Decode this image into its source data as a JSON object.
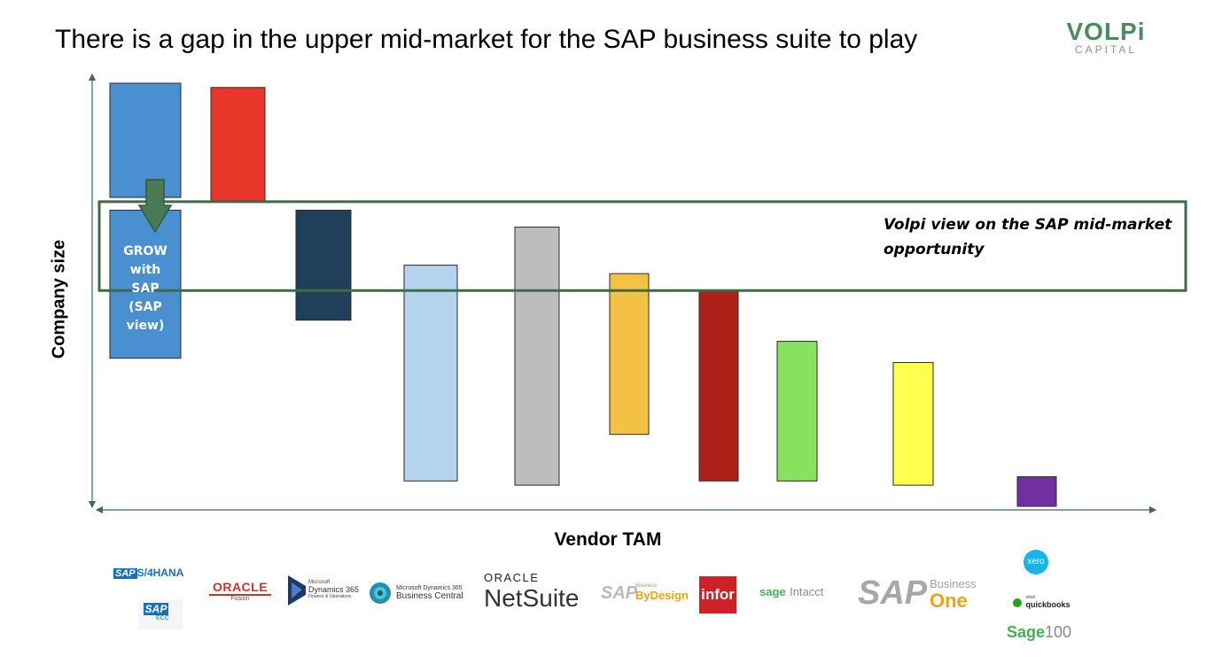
{
  "header": {
    "title": "There is a gap in the upper mid-market for the SAP business suite to play",
    "brand_name": "VOLPi",
    "brand_sub": "CAPITAL"
  },
  "chart_data": {
    "type": "bar",
    "subtype": "floating-range",
    "xlabel": "Vendor TAM",
    "ylabel": "Company size",
    "ylim": [
      0,
      100
    ],
    "grid": false,
    "legend": "none",
    "bars": [
      {
        "vendor": "SAP S/4HANA",
        "range": [
          73,
          100
        ],
        "color": "#4a8fcf"
      },
      {
        "vendor": "SAP ECC",
        "range": [
          35,
          70
        ],
        "color": "#4a8fcf",
        "label": "GROW with SAP (SAP view)"
      },
      {
        "vendor": "Oracle Fusion",
        "range": [
          72,
          99
        ],
        "color": "#e8372a"
      },
      {
        "vendor": "Microsoft Dynamics 365 Finance & Operations",
        "range": [
          44,
          70
        ],
        "color": "#1f3f5b"
      },
      {
        "vendor": "Microsoft Dynamics 365 Business Central",
        "range": [
          6,
          57
        ],
        "color": "#b4d4ee"
      },
      {
        "vendor": "Oracle NetSuite",
        "range": [
          5,
          66
        ],
        "color": "#bdbdbd"
      },
      {
        "vendor": "SAP Business ByDesign",
        "range": [
          17,
          55
        ],
        "color": "#f3c144"
      },
      {
        "vendor": "infor",
        "range": [
          6,
          51
        ],
        "color": "#ad2119"
      },
      {
        "vendor": "sage Intacct",
        "range": [
          6,
          39
        ],
        "color": "#87e25e"
      },
      {
        "vendor": "SAP Business One",
        "range": [
          5,
          34
        ],
        "color": "#ffff4d"
      },
      {
        "vendor": "xero / quickbooks / Sage 100",
        "range": [
          0,
          7
        ],
        "color": "#7030a0"
      }
    ],
    "annotations": {
      "opportunity_band": {
        "range": [
          51,
          72
        ],
        "text": "Volpi view on the SAP mid-market opportunity",
        "color": "#3d6b47"
      },
      "arrow": {
        "direction": "down",
        "color": "#4a7a55"
      }
    }
  },
  "logos": {
    "s4hana": "S/4HANA",
    "sap": "SAP",
    "ecc": "ECC",
    "oracle": "ORACLE",
    "fusion": "Fusion",
    "ms_small": "Microsoft",
    "dynamics365": "Dynamics 365",
    "fin_ops": "Finance & Operations",
    "ms_bc_top": "Microsoft Dynamics 365",
    "business_central": "Business Central",
    "oracle_caps": "ORACLE",
    "netsuite": "NetSuite",
    "business_small": "Business",
    "bydesign": "ByDesign",
    "infor": "infor",
    "sage": "sage",
    "intacct": "Intacct",
    "sap_big": "SAP",
    "business": "Business",
    "one": "One",
    "xero": "xero",
    "intuit": "intuit",
    "quickbooks": "quickbooks",
    "sage100_sage": "Sage",
    "sage100_num": "100"
  },
  "colors": {
    "axis": "#3d6b56",
    "sap_blue": "#1a6fb8",
    "oracle_red": "#d0312d",
    "netsuite_text": "#333333",
    "sage_green": "#3fb34f",
    "sap_one_orange": "#e8a317",
    "xero_blue": "#13b5ea"
  }
}
